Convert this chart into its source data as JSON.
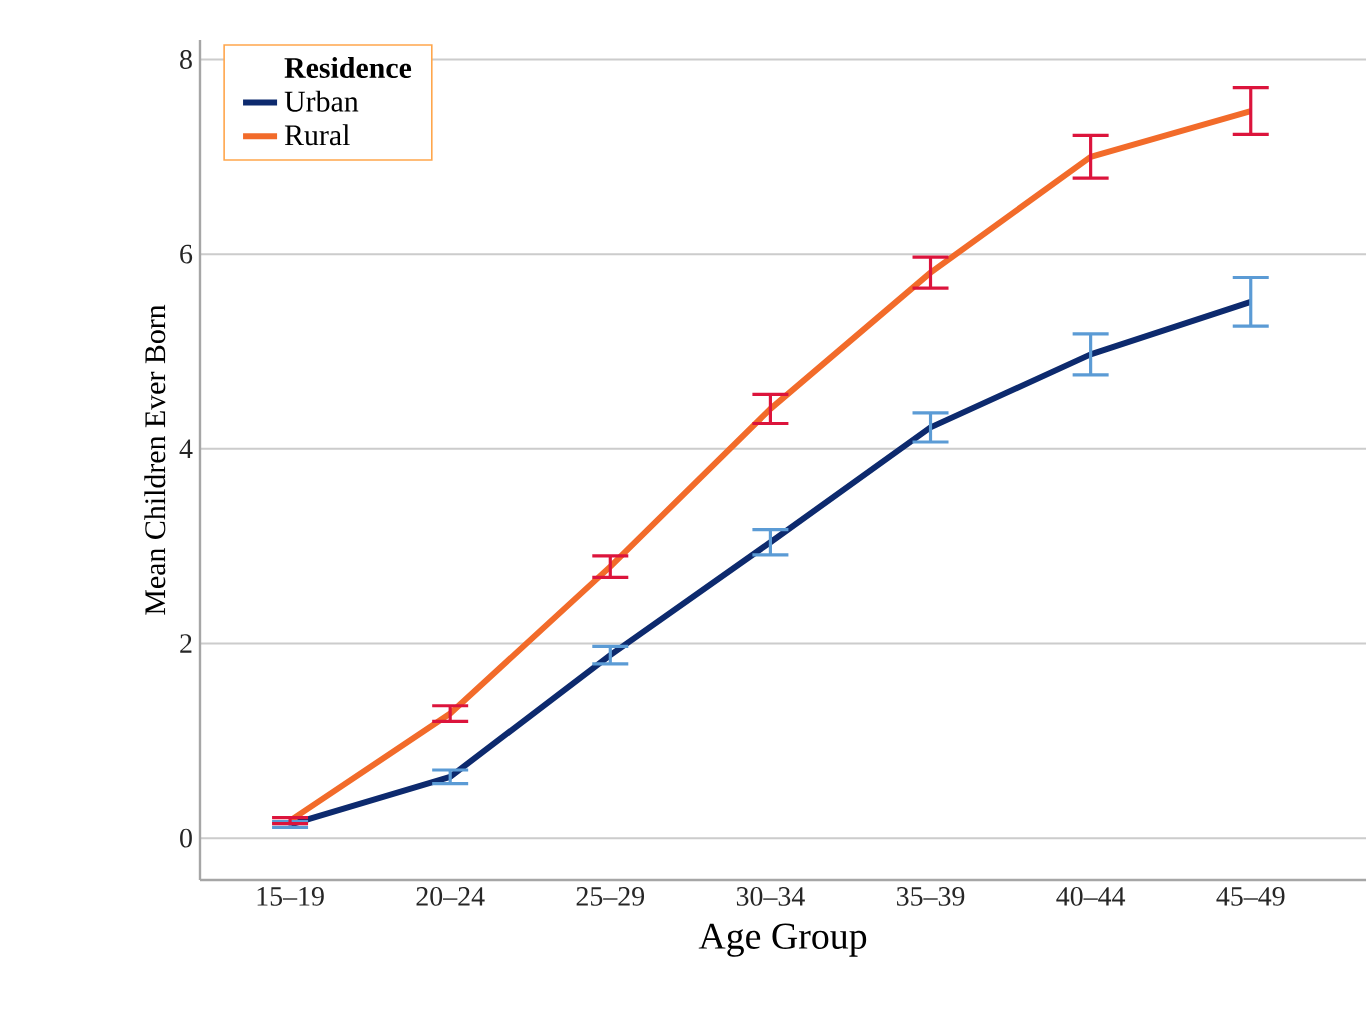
{
  "chart_data": {
    "type": "line",
    "xlabel": "Age Group",
    "ylabel": "Mean Children Ever Born",
    "legend_title": "Residence",
    "categories": [
      "15–19",
      "20–24",
      "25–29",
      "30–34",
      "35–39",
      "40–44",
      "45–49"
    ],
    "series": [
      {
        "name": "Urban",
        "color": "#0d2a6e",
        "values": [
          0.14,
          0.63,
          1.88,
          3.04,
          4.22,
          4.97,
          5.51
        ],
        "errors": [
          0.03,
          0.07,
          0.09,
          0.13,
          0.15,
          0.21,
          0.25
        ]
      },
      {
        "name": "Rural",
        "color": "#f26b2a",
        "values": [
          0.18,
          1.28,
          2.79,
          4.41,
          5.81,
          7.0,
          7.47
        ],
        "errors": [
          0.03,
          0.08,
          0.11,
          0.15,
          0.16,
          0.22,
          0.24
        ]
      }
    ],
    "ylim": [
      -0.43,
      8.2
    ],
    "yticks": [
      0,
      2,
      4,
      6,
      8
    ],
    "grid": "y",
    "legend": "top left",
    "marker": "none",
    "line_style": "solid"
  }
}
